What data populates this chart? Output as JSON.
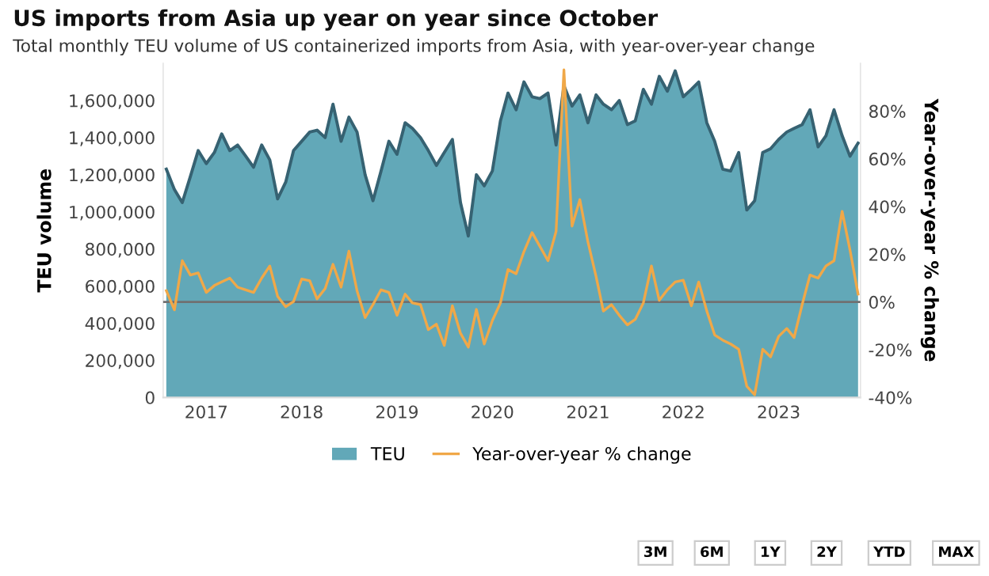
{
  "chart_data": {
    "type": "area",
    "title": "US imports from Asia up year on year since October",
    "subtitle": "Total monthly TEU volume of US containerized imports from Asia, with year-over-year change",
    "ylabel": "TEU volume",
    "y2label": "Year-over-year % change",
    "x": [
      "2016-08",
      "2016-09",
      "2016-10",
      "2016-11",
      "2016-12",
      "2017-01",
      "2017-02",
      "2017-03",
      "2017-04",
      "2017-05",
      "2017-06",
      "2017-07",
      "2017-08",
      "2017-09",
      "2017-10",
      "2017-11",
      "2017-12",
      "2018-01",
      "2018-02",
      "2018-03",
      "2018-04",
      "2018-05",
      "2018-06",
      "2018-07",
      "2018-08",
      "2018-09",
      "2018-10",
      "2018-11",
      "2018-12",
      "2019-01",
      "2019-02",
      "2019-03",
      "2019-04",
      "2019-05",
      "2019-06",
      "2019-07",
      "2019-08",
      "2019-09",
      "2019-10",
      "2019-11",
      "2019-12",
      "2020-01",
      "2020-02",
      "2020-03",
      "2020-04",
      "2020-05",
      "2020-06",
      "2020-07",
      "2020-08",
      "2020-09",
      "2020-10",
      "2020-11",
      "2020-12",
      "2021-01",
      "2021-02",
      "2021-03",
      "2021-04",
      "2021-05",
      "2021-06",
      "2021-07",
      "2021-08",
      "2021-09",
      "2021-10",
      "2021-11",
      "2021-12",
      "2022-01",
      "2022-02",
      "2022-03",
      "2022-04",
      "2022-05",
      "2022-06",
      "2022-07",
      "2022-08",
      "2022-09",
      "2022-10",
      "2022-11",
      "2022-12",
      "2023-01",
      "2023-02",
      "2023-03",
      "2023-04",
      "2023-05",
      "2023-06",
      "2023-07",
      "2023-08",
      "2023-09",
      "2023-10",
      "2023-11"
    ],
    "series": [
      {
        "name": "TEU",
        "color": "#62a8b8",
        "values": [
          1230000,
          1120000,
          1050000,
          1190000,
          1330000,
          1260000,
          1320000,
          1420000,
          1330000,
          1360000,
          1300000,
          1240000,
          1360000,
          1280000,
          1070000,
          1160000,
          1330000,
          1380000,
          1430000,
          1440000,
          1400000,
          1580000,
          1380000,
          1510000,
          1430000,
          1200000,
          1060000,
          1220000,
          1380000,
          1310000,
          1480000,
          1450000,
          1400000,
          1330000,
          1250000,
          1320000,
          1390000,
          1050000,
          870000,
          1200000,
          1140000,
          1220000,
          1490000,
          1640000,
          1550000,
          1700000,
          1620000,
          1610000,
          1640000,
          1360000,
          1680000,
          1570000,
          1630000,
          1480000,
          1630000,
          1580000,
          1550000,
          1600000,
          1470000,
          1490000,
          1660000,
          1580000,
          1730000,
          1650000,
          1760000,
          1620000,
          1660000,
          1700000,
          1480000,
          1380000,
          1230000,
          1220000,
          1320000,
          1010000,
          1060000,
          1320000,
          1340000,
          1390000,
          1430000,
          1450000,
          1470000,
          1550000,
          1350000,
          1410000,
          1550000,
          1410000,
          1300000,
          1370000
        ]
      },
      {
        "name": "Year-over-year % change",
        "type": "line",
        "axis": "y2",
        "color": "#f0a848",
        "values": [
          4.7,
          -3.3,
          17.3,
          11.3,
          12.2,
          4.0,
          6.9,
          8.4,
          10.0,
          6.2,
          5.1,
          4.0,
          10.0,
          15.1,
          2.4,
          -2.0,
          0.2,
          9.6,
          8.9,
          1.3,
          5.6,
          15.8,
          6.2,
          21.3,
          4.7,
          -6.5,
          -1.1,
          5.1,
          4.0,
          -5.6,
          3.3,
          -0.4,
          -1.1,
          -11.6,
          -9.3,
          -18.2,
          -1.6,
          -13.1,
          -18.9,
          -3.1,
          -17.6,
          -7.8,
          -0.4,
          13.6,
          11.8,
          21.1,
          29.1,
          23.3,
          17.3,
          29.6,
          97.3,
          31.8,
          42.9,
          25.1,
          10.7,
          -3.8,
          -1.1,
          -5.6,
          -9.6,
          -7.3,
          -0.4,
          15.1,
          0.7,
          5.1,
          8.4,
          9.1,
          -1.6,
          8.4,
          -3.8,
          -13.8,
          -16.0,
          -17.6,
          -19.8,
          -35.3,
          -38.9,
          -19.8,
          -23.0,
          -14.4,
          -11.1,
          -14.9,
          -1.1,
          11.3,
          10.0,
          15.1,
          17.3,
          38.0,
          21.8,
          3.3
        ]
      }
    ],
    "xlim": [
      "2016-07-20",
      "2023-11-10"
    ],
    "xticks": [
      {
        "value": "2017-01",
        "label": "2017"
      },
      {
        "value": "2018-01",
        "label": "2018"
      },
      {
        "value": "2019-01",
        "label": "2019"
      },
      {
        "value": "2020-01",
        "label": "2020"
      },
      {
        "value": "2021-01",
        "label": "2021"
      },
      {
        "value": "2022-01",
        "label": "2022"
      },
      {
        "value": "2023-01",
        "label": "2023"
      }
    ],
    "ylim": [
      0,
      1800000
    ],
    "yticks": [
      {
        "value": 0,
        "label": "0"
      },
      {
        "value": 200000,
        "label": "200,000"
      },
      {
        "value": 400000,
        "label": "400,000"
      },
      {
        "value": 600000,
        "label": "600,000"
      },
      {
        "value": 800000,
        "label": "800,000"
      },
      {
        "value": 1000000,
        "label": "1,000,000"
      },
      {
        "value": 1200000,
        "label": "1,200,000"
      },
      {
        "value": 1400000,
        "label": "1,400,000"
      },
      {
        "value": 1600000,
        "label": "1,600,000"
      }
    ],
    "y2lim": [
      -40,
      100
    ],
    "y2ticks": [
      {
        "value": -40,
        "label": "-40%"
      },
      {
        "value": -20,
        "label": "-20%"
      },
      {
        "value": 0,
        "label": "0%"
      },
      {
        "value": 20,
        "label": "20%"
      },
      {
        "value": 40,
        "label": "40%"
      },
      {
        "value": 60,
        "label": "60%"
      },
      {
        "value": 80,
        "label": "80%"
      }
    ],
    "ref_lines": [
      {
        "axis": "y2",
        "value": 0,
        "color": "#707070"
      }
    ],
    "grid": false,
    "legend": "bottom",
    "annotations": [
      "3M",
      "6M",
      "1Y",
      "2Y",
      "YTD",
      "MAX"
    ]
  }
}
